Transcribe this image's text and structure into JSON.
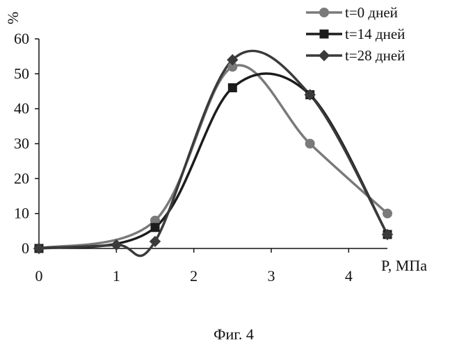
{
  "chart_data": {
    "type": "line",
    "title": "",
    "xlabel": "P, МПа",
    "ylabel": "%",
    "xlim": [
      0,
      4.5
    ],
    "ylim": [
      0,
      60
    ],
    "x_ticks": [
      "0",
      "1",
      "2",
      "3",
      "4"
    ],
    "y_ticks": [
      "0",
      "10",
      "20",
      "30",
      "40",
      "50",
      "60"
    ],
    "grid": false,
    "smoothed": true,
    "legend_position": "top-right",
    "series": [
      {
        "name": "t=0 дней",
        "marker": "circle",
        "color": "#7a7a7a",
        "x": [
          0,
          1.5,
          2.5,
          3.5,
          4.5
        ],
        "y": [
          0,
          8,
          52,
          30,
          10
        ]
      },
      {
        "name": "t=14 дней",
        "marker": "square",
        "color": "#1c1c1c",
        "x": [
          0,
          1.5,
          2.5,
          3.5,
          4.5
        ],
        "y": [
          0,
          6,
          46,
          44,
          4
        ]
      },
      {
        "name": "t=28 дней",
        "marker": "diamond",
        "color": "#3a3a3a",
        "x": [
          0,
          1,
          1.5,
          2.5,
          3.5,
          4.5
        ],
        "y": [
          0,
          1,
          2,
          54,
          44,
          4
        ]
      }
    ],
    "caption": "Фиг. 4"
  }
}
